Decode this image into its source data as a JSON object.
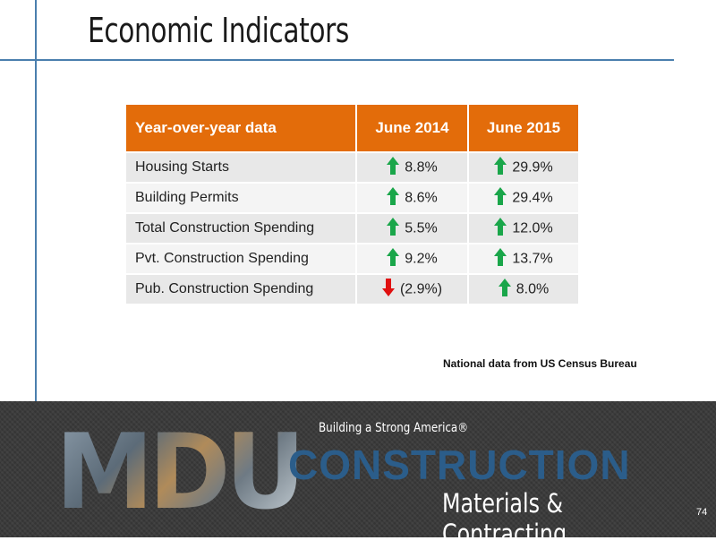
{
  "slide": {
    "title": "Economic Indicators",
    "source_note": "National data from US Census Bureau",
    "page_number": "74"
  },
  "table": {
    "headers": [
      "Year-over-year data",
      "June 2014",
      "June 2015"
    ],
    "rows": [
      {
        "label": "Housing Starts",
        "june_2014": "8.8%",
        "june_2014_dir": "up",
        "june_2015": "29.9%",
        "june_2015_dir": "up"
      },
      {
        "label": "Building Permits",
        "june_2014": "8.6%",
        "june_2014_dir": "up",
        "june_2015": "29.4%",
        "june_2015_dir": "up"
      },
      {
        "label": "Total Construction Spending",
        "june_2014": "5.5%",
        "june_2014_dir": "up",
        "june_2015": "12.0%",
        "june_2015_dir": "up"
      },
      {
        "label": "Pvt. Construction Spending",
        "june_2014": "9.2%",
        "june_2014_dir": "up",
        "june_2015": "13.7%",
        "june_2015_dir": "up"
      },
      {
        "label": "Pub. Construction Spending",
        "june_2014": "(2.9%)",
        "june_2014_dir": "down",
        "june_2015": "8.0%",
        "june_2015_dir": "up"
      }
    ]
  },
  "footer": {
    "logo_text": "MDU",
    "tagline": "Building a Strong America®",
    "brand_line1": "CONSTRUCTION",
    "brand_line2": "Materials & Contracting"
  },
  "colors": {
    "header_bg": "#e36c0a",
    "arrow_up": "#1aa64a",
    "arrow_down": "#e01010",
    "accent_line": "#4a7fae",
    "construction_text": "#2b5d8a"
  },
  "icons": {
    "up": "arrow-up-icon",
    "down": "arrow-down-icon"
  }
}
